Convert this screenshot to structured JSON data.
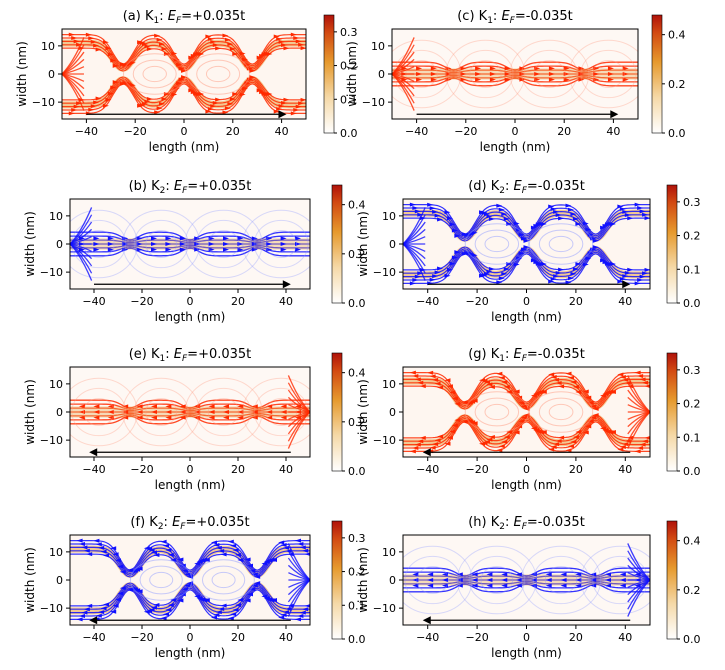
{
  "chart_data": [
    {
      "panel": "a",
      "type": "heatmap",
      "title_prefix": "(a) K",
      "valley": "1",
      "energy": "=+0.035t",
      "field": "E",
      "field_sub": "F",
      "xlabel": "length (nm)",
      "ylabel": "width (nm)",
      "xlim": [
        -50,
        50
      ],
      "ylim": [
        -16,
        16
      ],
      "xticks": [
        "-40",
        "-20",
        "0",
        "20",
        "40"
      ],
      "yticks": [
        "10",
        "0",
        "-10"
      ],
      "colorbar": {
        "min": 0,
        "max": 0.35,
        "ticks": [
          "0.3",
          "0.2",
          "0.1",
          "0.0"
        ]
      },
      "colormap": "white-orange-red",
      "arrow_color": "#ff2a00",
      "flow_direction": "right",
      "arrow_span": [
        -40,
        42
      ],
      "pattern": "edge-channels",
      "source_side": "left"
    },
    {
      "panel": "c",
      "type": "heatmap",
      "title_prefix": "(c) K",
      "valley": "1",
      "energy": "=-0.035t",
      "field": "E",
      "field_sub": "F",
      "xlabel": "length (nm)",
      "ylabel": "width (nm)",
      "xlim": [
        -50,
        50
      ],
      "ylim": [
        -16,
        16
      ],
      "xticks": [
        "-40",
        "-20",
        "0",
        "20",
        "40"
      ],
      "yticks": [
        "10",
        "0",
        "-10"
      ],
      "colorbar": {
        "min": 0,
        "max": 0.48,
        "ticks": [
          "0.4",
          "0.2",
          "0.0"
        ]
      },
      "colormap": "white-orange-red",
      "arrow_color": "#ff2a00",
      "flow_direction": "right",
      "arrow_span": [
        -40,
        42
      ],
      "pattern": "center-channel",
      "source_side": "left"
    },
    {
      "panel": "b",
      "type": "heatmap",
      "title_prefix": "(b) K",
      "valley": "2",
      "energy": "=+0.035t",
      "field": "E",
      "field_sub": "F",
      "xlabel": "length (nm)",
      "ylabel": "width (nm)",
      "xlim": [
        -50,
        50
      ],
      "ylim": [
        -16,
        16
      ],
      "xticks": [
        "-40",
        "-20",
        "0",
        "20",
        "40"
      ],
      "yticks": [
        "10",
        "0",
        "-10"
      ],
      "colorbar": {
        "min": 0,
        "max": 0.48,
        "ticks": [
          "0.4",
          "0.2",
          "0.0"
        ]
      },
      "colormap": "white-orange-red",
      "arrow_color": "#1010ff",
      "flow_direction": "right",
      "arrow_span": [
        -40,
        42
      ],
      "pattern": "center-channel",
      "source_side": "left"
    },
    {
      "panel": "d",
      "type": "heatmap",
      "title_prefix": "(d) K",
      "valley": "2",
      "energy": "=-0.035t",
      "field": "E",
      "field_sub": "F",
      "xlabel": "length (nm)",
      "ylabel": "width (nm)",
      "xlim": [
        -50,
        50
      ],
      "ylim": [
        -16,
        16
      ],
      "xticks": [
        "-40",
        "-20",
        "0",
        "20",
        "40"
      ],
      "yticks": [
        "10",
        "0",
        "-10"
      ],
      "colorbar": {
        "min": 0,
        "max": 0.35,
        "ticks": [
          "0.3",
          "0.2",
          "0.1",
          "0.0"
        ]
      },
      "colormap": "white-orange-red",
      "arrow_color": "#1010ff",
      "flow_direction": "right",
      "arrow_span": [
        -40,
        42
      ],
      "pattern": "edge-channels",
      "source_side": "left"
    },
    {
      "panel": "e",
      "type": "heatmap",
      "title_prefix": "(e) K",
      "valley": "1",
      "energy": "=+0.035t",
      "field": "E",
      "field_sub": "F",
      "xlabel": "length (nm)",
      "ylabel": "width (nm)",
      "xlim": [
        -50,
        50
      ],
      "ylim": [
        -16,
        16
      ],
      "xticks": [
        "-40",
        "-20",
        "0",
        "20",
        "40"
      ],
      "yticks": [
        "10",
        "0",
        "-10"
      ],
      "colorbar": {
        "min": 0,
        "max": 0.48,
        "ticks": [
          "0.4",
          "0.2",
          "0.0"
        ]
      },
      "colormap": "white-orange-red",
      "arrow_color": "#ff2a00",
      "flow_direction": "left",
      "arrow_span": [
        -42,
        42
      ],
      "pattern": "center-channel",
      "source_side": "right"
    },
    {
      "panel": "g",
      "type": "heatmap",
      "title_prefix": "(g) K",
      "valley": "1",
      "energy": "=-0.035t",
      "field": "E",
      "field_sub": "F",
      "xlabel": "length (nm)",
      "ylabel": "width (nm)",
      "xlim": [
        -50,
        50
      ],
      "ylim": [
        -16,
        16
      ],
      "xticks": [
        "-40",
        "-20",
        "0",
        "20",
        "40"
      ],
      "yticks": [
        "10",
        "0",
        "-10"
      ],
      "colorbar": {
        "min": 0,
        "max": 0.35,
        "ticks": [
          "0.3",
          "0.2",
          "0.1",
          "0.0"
        ]
      },
      "colormap": "white-orange-red",
      "arrow_color": "#ff2a00",
      "flow_direction": "left",
      "arrow_span": [
        -42,
        42
      ],
      "pattern": "edge-channels",
      "source_side": "right"
    },
    {
      "panel": "f",
      "type": "heatmap",
      "title_prefix": "(f) K",
      "valley": "2",
      "energy": "=+0.035t",
      "field": "E",
      "field_sub": "F",
      "xlabel": "length (nm)",
      "ylabel": "width (nm)",
      "xlim": [
        -50,
        50
      ],
      "ylim": [
        -16,
        16
      ],
      "xticks": [
        "-40",
        "-20",
        "0",
        "20",
        "40"
      ],
      "yticks": [
        "10",
        "0",
        "-10"
      ],
      "colorbar": {
        "min": 0,
        "max": 0.35,
        "ticks": [
          "0.3",
          "0.2",
          "0.1",
          "0.0"
        ]
      },
      "colormap": "white-orange-red",
      "arrow_color": "#1010ff",
      "flow_direction": "left",
      "arrow_span": [
        -42,
        42
      ],
      "pattern": "edge-channels",
      "source_side": "right"
    },
    {
      "panel": "h",
      "type": "heatmap",
      "title_prefix": "(h) K",
      "valley": "2",
      "energy": "=-0.035t",
      "field": "E",
      "field_sub": "F",
      "xlabel": "length (nm)",
      "ylabel": "width (nm)",
      "xlim": [
        -50,
        50
      ],
      "ylim": [
        -16,
        16
      ],
      "xticks": [
        "-40",
        "-20",
        "0",
        "20",
        "40"
      ],
      "yticks": [
        "10",
        "0",
        "-10"
      ],
      "colorbar": {
        "min": 0,
        "max": 0.48,
        "ticks": [
          "0.4",
          "0.2",
          "0.0"
        ]
      },
      "colormap": "white-orange-red",
      "arrow_color": "#1010ff",
      "flow_direction": "left",
      "arrow_span": [
        -42,
        42
      ],
      "pattern": "center-channel",
      "source_side": "right"
    }
  ]
}
